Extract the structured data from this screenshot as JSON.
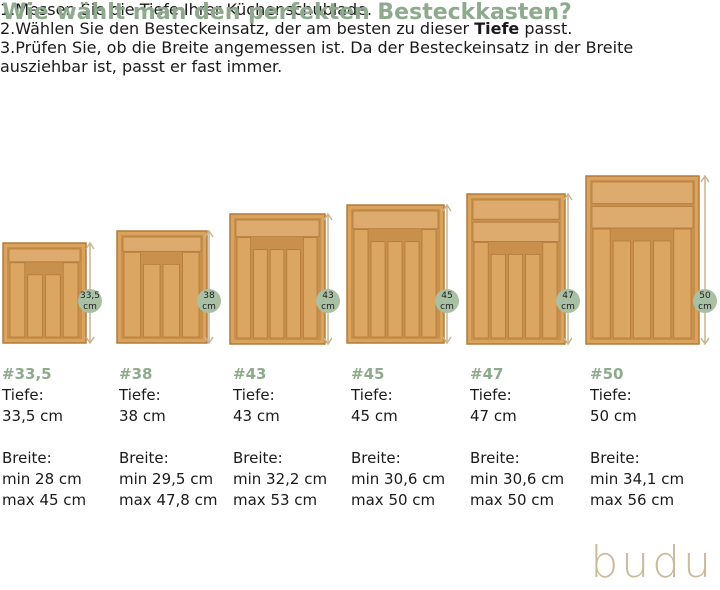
{
  "header": {
    "title": "Wie wählt man den perfekten Besteckkasten?",
    "steps": [
      {
        "number": "1.",
        "parts": [
          "Messen Sie die Tiefe Ihrer Küchenschublade."
        ]
      },
      {
        "number": "2.",
        "parts": [
          "Wählen Sie den Besteckeinsatz, der am besten zu dieser ",
          "Tiefe",
          " passt."
        ]
      },
      {
        "number": "3.",
        "parts": [
          "Prüfen Sie, ob die Breite angemessen ist. Da der Besteckeinsatz in der Breite ausziehbar ist, passt er fast immer."
        ]
      }
    ]
  },
  "products": [
    {
      "code": "#33,5",
      "badge": {
        "value": "33,5",
        "unit": "cm"
      },
      "depth_label": "Tiefe:",
      "depth": "33,5 cm",
      "width_label": "Breite:",
      "min": "min 28 cm",
      "max": "max 45 cm"
    },
    {
      "code": "#38",
      "badge": {
        "value": "38",
        "unit": "cm"
      },
      "depth_label": "Tiefe:",
      "depth": "38 cm",
      "width_label": "Breite:",
      "min": "min 29,5 cm",
      "max": "max 47,8 cm"
    },
    {
      "code": "#43",
      "badge": {
        "value": "43",
        "unit": "cm"
      },
      "depth_label": "Tiefe:",
      "depth": "43 cm",
      "width_label": "Breite:",
      "min": "min 32,2 cm",
      "max": "max 53 cm"
    },
    {
      "code": "#45",
      "badge": {
        "value": "45",
        "unit": "cm"
      },
      "depth_label": "Tiefe:",
      "depth": "45 cm",
      "width_label": "Breite:",
      "min": "min 30,6 cm",
      "max": "max 50 cm"
    },
    {
      "code": "#47",
      "badge": {
        "value": "47",
        "unit": "cm"
      },
      "depth_label": "Tiefe:",
      "depth": "47 cm",
      "width_label": "Breite:",
      "min": "min 30,6 cm",
      "max": "max 50 cm"
    },
    {
      "code": "#50",
      "badge": {
        "value": "50",
        "unit": "cm"
      },
      "depth_label": "Tiefe:",
      "depth": "50 cm",
      "width_label": "Breite:",
      "min": "min 34,1 cm",
      "max": "max 56 cm"
    }
  ],
  "brand": "budu"
}
